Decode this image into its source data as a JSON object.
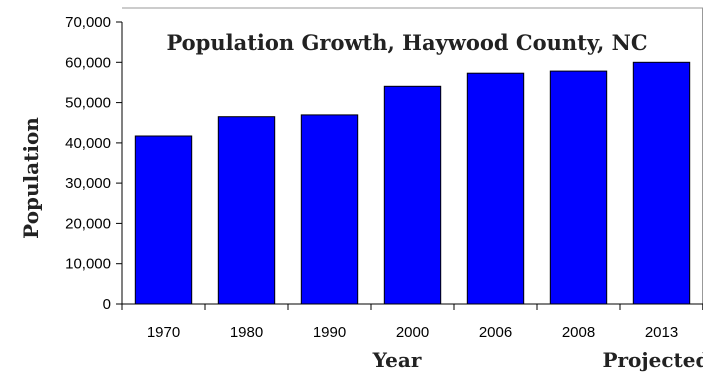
{
  "chart_data": {
    "type": "bar",
    "title": "Population Growth, Haywood County, NC",
    "xlabel": "Year",
    "ylabel": "Population",
    "categories": [
      "1970",
      "1980",
      "1990",
      "2000",
      "2006",
      "2008",
      "2013"
    ],
    "values": [
      41710,
      46495,
      46942,
      54033,
      57300,
      57800,
      60000
    ],
    "ylim": [
      0,
      70000
    ],
    "yticks": [
      "0",
      "10,000",
      "20,000",
      "30,000",
      "40,000",
      "50,000",
      "60,000",
      "70,000"
    ],
    "ytick_values": [
      0,
      10000,
      20000,
      30000,
      40000,
      50000,
      60000,
      70000
    ],
    "annotations": [
      "Projected"
    ],
    "bar_color": "#0000ff",
    "grid": false
  }
}
